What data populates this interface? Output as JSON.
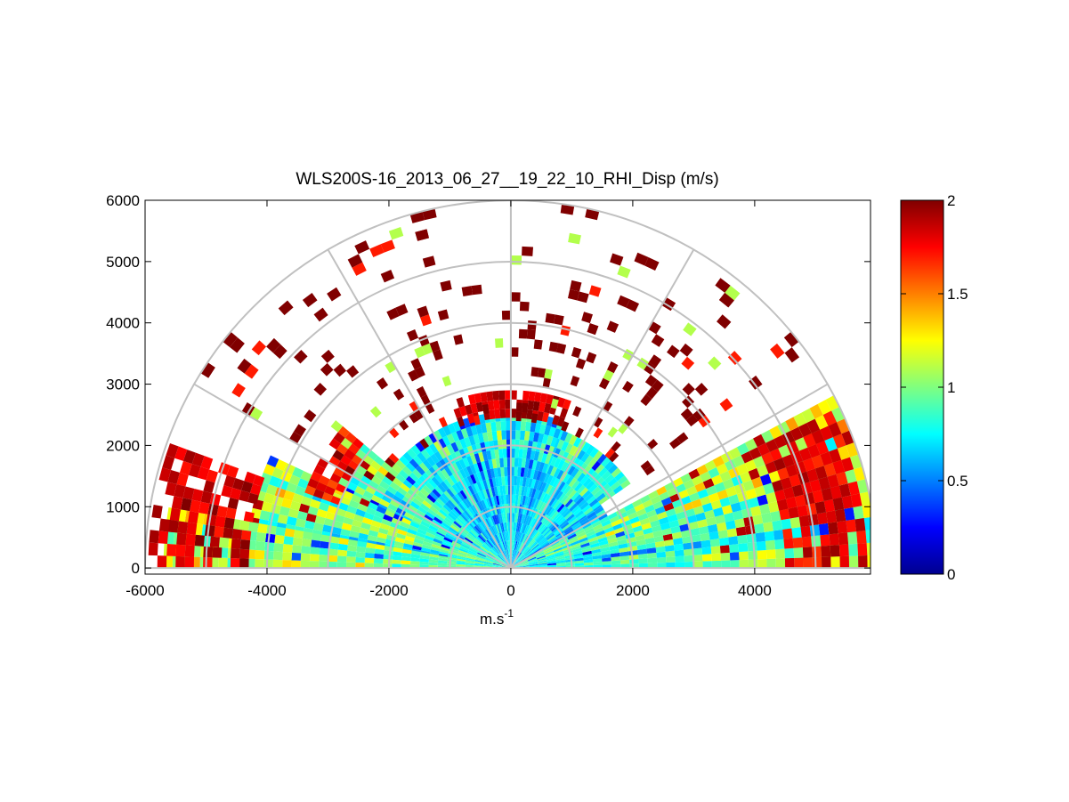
{
  "chart_data": {
    "type": "heatmap",
    "subtype": "polar-rhi-scan",
    "title": "WLS200S-16_2013_06_27__19_22_10_RHI_Disp (m/s)",
    "xlabel": "m.s",
    "xlabel_superscript": "-1",
    "ylabel": "",
    "xlim": [
      -6000,
      5900
    ],
    "ylim": [
      -100,
      6000
    ],
    "x_ticks": [
      -6000,
      -4000,
      -2000,
      0,
      2000,
      4000
    ],
    "x_tick_labels": [
      "-6000",
      "-4000",
      "-2000",
      "0",
      "2000",
      "4000"
    ],
    "y_ticks": [
      0,
      1000,
      2000,
      3000,
      4000,
      5000,
      6000
    ],
    "y_tick_labels": [
      "0",
      "1000",
      "2000",
      "3000",
      "4000",
      "5000",
      "6000"
    ],
    "polar_grid": {
      "range_rings": [
        1000,
        2000,
        3000,
        4000,
        5000,
        6000
      ],
      "spoke_angles_deg": [
        0,
        30,
        60,
        90,
        120,
        150,
        180
      ]
    },
    "colorbar": {
      "colormap": "jet",
      "min": 0,
      "max": 2,
      "ticks": [
        0,
        0.5,
        1,
        1.5,
        2
      ],
      "tick_labels": [
        "0",
        "0.5",
        "1",
        "1.5",
        "2"
      ]
    },
    "sectors": [
      {
        "az_from": 0,
        "az_to": 12,
        "r_from": 0,
        "r_to": 5900,
        "base_value": 0.75
      },
      {
        "az_from": 12,
        "az_to": 28,
        "r_from": 0,
        "r_to": 5900,
        "base_value": 0.85
      },
      {
        "az_from": 28,
        "az_to": 35,
        "r_from": 0,
        "r_to": 1800,
        "base_value": 0.7
      },
      {
        "az_from": 35,
        "az_to": 70,
        "r_from": 0,
        "r_to": 2300,
        "base_value": 0.7
      },
      {
        "az_from": 70,
        "az_to": 110,
        "r_from": 0,
        "r_to": 2450,
        "base_value": 0.65
      },
      {
        "az_from": 110,
        "az_to": 140,
        "r_from": 0,
        "r_to": 2450,
        "base_value": 0.7
      },
      {
        "az_from": 140,
        "az_to": 155,
        "r_from": 0,
        "r_to": 3300,
        "base_value": 0.8
      },
      {
        "az_from": 155,
        "az_to": 170,
        "r_from": 0,
        "r_to": 4300,
        "base_value": 0.85
      },
      {
        "az_from": 170,
        "az_to": 180,
        "r_from": 0,
        "r_to": 5600,
        "base_value": 0.95
      }
    ],
    "edge_bands": [
      {
        "az_from": 70,
        "az_to": 110,
        "r_from": 2450,
        "r_to": 2900,
        "value": 2.0
      },
      {
        "az_from": 140,
        "az_to": 160,
        "r_from": 3000,
        "r_to": 3500,
        "value": 1.9
      },
      {
        "az_from": 160,
        "az_to": 180,
        "r_from": 4300,
        "r_to": 5900,
        "value": 2.0
      },
      {
        "az_from": 0,
        "az_to": 25,
        "r_from": 4500,
        "r_to": 5800,
        "value": 1.95
      }
    ],
    "scattered_high_region": {
      "az_from": 35,
      "az_to": 150,
      "r_from": 2400,
      "r_to": 6000,
      "value": 2.0
    }
  }
}
